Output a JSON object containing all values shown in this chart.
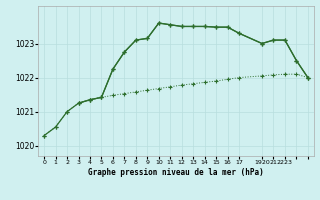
{
  "title": "Graphe pression niveau de la mer (hPa)",
  "bg_color": "#d0f0f0",
  "line_color": "#2d6e2d",
  "grid_color": "#b8dede",
  "spine_color": "#aaaaaa",
  "xlim": [
    -0.5,
    23.5
  ],
  "ylim": [
    1019.7,
    1024.1
  ],
  "yticks": [
    1020,
    1021,
    1022,
    1023
  ],
  "xticks": [
    0,
    1,
    2,
    3,
    4,
    5,
    6,
    7,
    8,
    9,
    10,
    11,
    12,
    13,
    14,
    15,
    16,
    17,
    19,
    20,
    21,
    22,
    23
  ],
  "xtick_labels": [
    "0",
    "1",
    "2",
    "3",
    "4",
    "5",
    "6",
    "7",
    "8",
    "9",
    "10",
    "11",
    "12",
    "13",
    "14",
    "15",
    "16",
    "17",
    "1920",
    "21",
    "2223",
    "",
    ""
  ],
  "line1_x": [
    0,
    1,
    2,
    3,
    4,
    5,
    6,
    7,
    8,
    9,
    10,
    11,
    12,
    13,
    14,
    15,
    16,
    17,
    19,
    20,
    21,
    22,
    23
  ],
  "line1_y": [
    1020.3,
    1020.55,
    1021.0,
    1021.25,
    1021.35,
    1021.42,
    1021.48,
    1021.53,
    1021.58,
    1021.63,
    1021.68,
    1021.73,
    1021.78,
    1021.82,
    1021.86,
    1021.9,
    1021.95,
    1022.0,
    1022.05,
    1022.08,
    1022.1,
    1022.1,
    1022.0
  ],
  "line2_x": [
    0,
    1,
    2,
    3,
    4,
    5,
    6,
    7,
    8,
    9,
    10,
    11,
    12,
    13,
    14,
    15,
    16,
    17,
    19,
    20,
    21,
    22,
    23
  ],
  "line2_y": [
    1020.3,
    1020.55,
    1021.0,
    1021.25,
    1021.35,
    1021.42,
    1022.25,
    1022.75,
    1023.1,
    1023.15,
    1023.6,
    1023.55,
    1023.5,
    1023.5,
    1023.5,
    1023.48,
    1023.48,
    1023.3,
    1023.0,
    1023.1,
    1023.1,
    1022.5,
    1022.0
  ],
  "line3_x": [
    3,
    4,
    5,
    6,
    7,
    8,
    9,
    10,
    11,
    12,
    13,
    14,
    15,
    16,
    17,
    19,
    20,
    21,
    22,
    23
  ],
  "line3_y": [
    1021.25,
    1021.35,
    1021.42,
    1022.25,
    1022.75,
    1023.1,
    1023.15,
    1023.6,
    1023.55,
    1023.5,
    1023.5,
    1023.5,
    1023.48,
    1023.48,
    1023.3,
    1023.0,
    1023.1,
    1023.1,
    1022.5,
    1022.0
  ]
}
